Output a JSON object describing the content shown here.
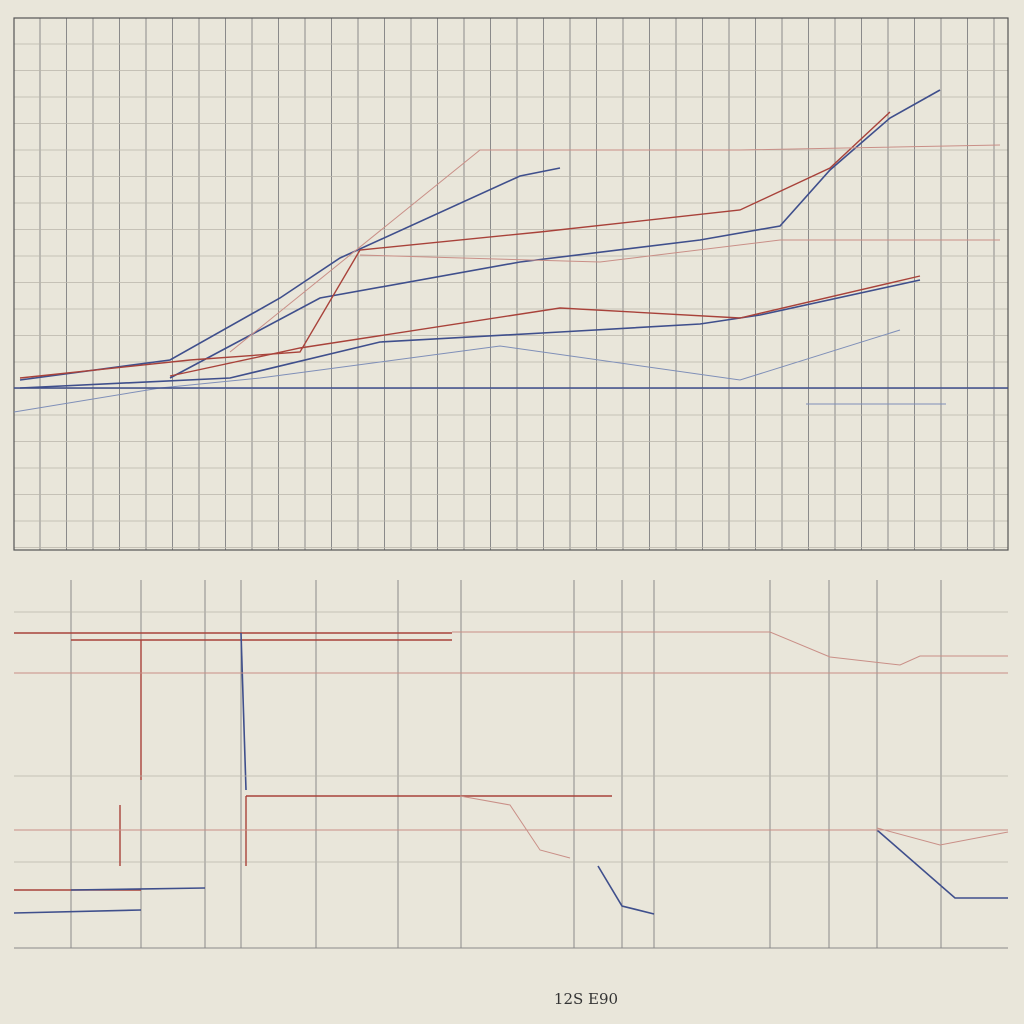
{
  "caption": "12S E90"
}
